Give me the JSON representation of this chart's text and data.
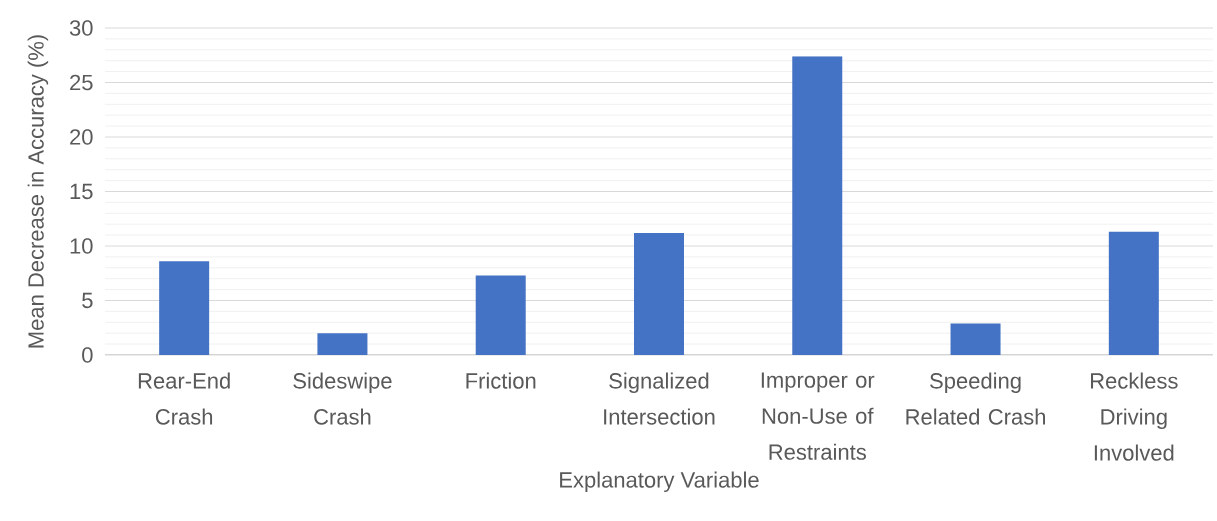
{
  "chart_data": {
    "type": "bar",
    "xlabel": "Explanatory Variable",
    "ylabel": "Mean Decrease in Accuracy (%)",
    "categories": [
      "Rear-End Crash",
      "Sideswipe Crash",
      "Friction",
      "Signalized Intersection",
      "Improper or Non-Use of Restraints",
      "Speeding Related Crash",
      "Reckless Driving Involved"
    ],
    "values": [
      8.6,
      2.0,
      7.3,
      11.2,
      27.4,
      2.9,
      11.3
    ],
    "color": "#4472c4",
    "ylim": [
      0,
      30
    ],
    "yticks": [
      0,
      5,
      10,
      15,
      20,
      25,
      30
    ],
    "grid": "y"
  }
}
